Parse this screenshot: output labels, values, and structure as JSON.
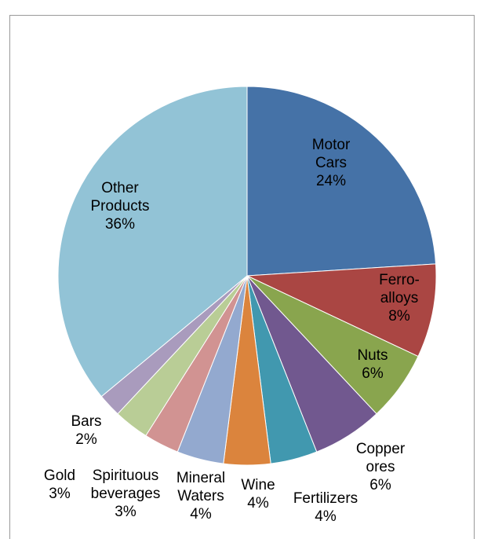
{
  "chart_data": {
    "type": "pie",
    "title": "",
    "slices": [
      {
        "name": "Motor Cars",
        "label_lines": [
          "Motor",
          "Cars"
        ],
        "value": 24,
        "value_label": "24%",
        "color": "#4572A7"
      },
      {
        "name": "Ferro-alloys",
        "label_lines": [
          "Ferro-",
          "alloys"
        ],
        "value": 8,
        "value_label": "8%",
        "color": "#AA4643"
      },
      {
        "name": "Nuts",
        "label_lines": [
          "Nuts"
        ],
        "value": 6,
        "value_label": "6%",
        "color": "#89A54E"
      },
      {
        "name": "Copper ores",
        "label_lines": [
          "Copper",
          "ores"
        ],
        "value": 6,
        "value_label": "6%",
        "color": "#71588F"
      },
      {
        "name": "Fertilizers",
        "label_lines": [
          "Fertilizers"
        ],
        "value": 4,
        "value_label": "4%",
        "color": "#4198AF"
      },
      {
        "name": "Wine",
        "label_lines": [
          "Wine"
        ],
        "value": 4,
        "value_label": "4%",
        "color": "#DB843D"
      },
      {
        "name": "Mineral Waters",
        "label_lines": [
          "Mineral",
          "Waters"
        ],
        "value": 4,
        "value_label": "4%",
        "color": "#93A9CF"
      },
      {
        "name": "Spirituous beverages",
        "label_lines": [
          "Spirituous",
          "beverages"
        ],
        "value": 3,
        "value_label": "3%",
        "color": "#D19392"
      },
      {
        "name": "Gold",
        "label_lines": [
          "Gold"
        ],
        "value": 3,
        "value_label": "3%",
        "color": "#B9CD96"
      },
      {
        "name": "Bars",
        "label_lines": [
          "Bars"
        ],
        "value": 2,
        "value_label": "2%",
        "color": "#A99BBD"
      },
      {
        "name": "Other Products",
        "label_lines": [
          "Other",
          "Products"
        ],
        "value": 36,
        "value_label": "36%",
        "color": "#92C3D6"
      }
    ],
    "legend": "none"
  }
}
